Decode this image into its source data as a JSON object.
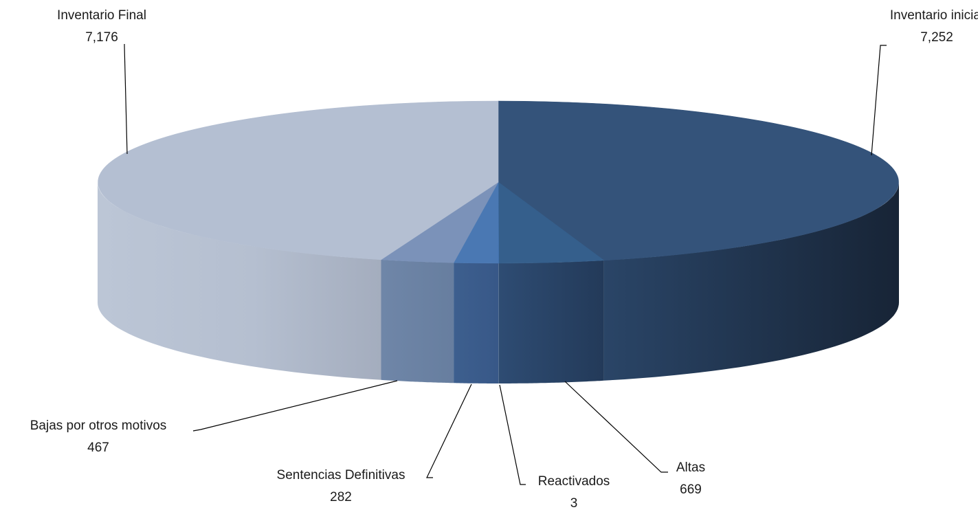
{
  "chart_data": {
    "type": "pie",
    "style": "3d-exploded-cylinder",
    "categories": [
      "Inventario inicial",
      "Altas",
      "Reactivados",
      "Sentencias Definitivas",
      "Bajas por otros motivos",
      "Inventario Final"
    ],
    "values": [
      7252,
      669,
      3,
      282,
      467,
      7176
    ],
    "value_labels": [
      "7,252",
      "669",
      "3",
      "282",
      "467",
      "7,176"
    ],
    "colors": [
      "#34537a",
      "#355f8c",
      "#3e6fa8",
      "#4a78b3",
      "#7b92b9",
      "#b4bfd2"
    ],
    "legend": "none",
    "data_labels": "outside-with-leader-lines"
  }
}
